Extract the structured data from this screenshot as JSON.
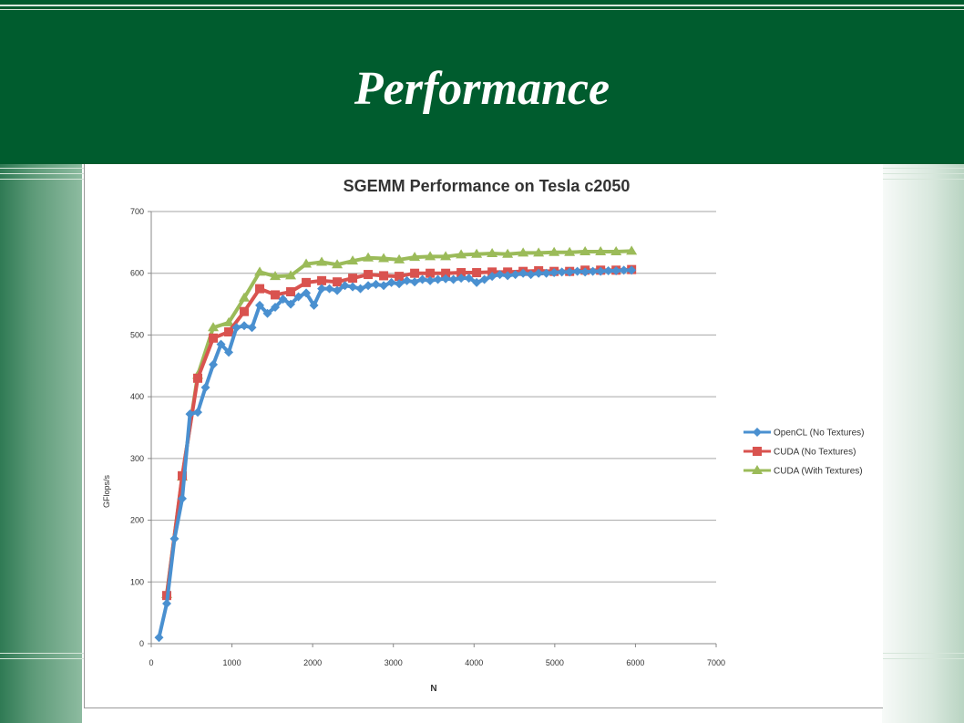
{
  "slide": {
    "title": "Performance"
  },
  "colors": {
    "header_bg": "#005c2e",
    "opencl": "#4a90d0",
    "cuda_no_tex": "#d9534f",
    "cuda_tex": "#9bbb59"
  },
  "chart_data": {
    "type": "line",
    "title": "SGEMM Performance on Tesla c2050",
    "xlabel": "N",
    "ylabel": "GFlops/s",
    "xlim": [
      0,
      7000
    ],
    "ylim": [
      0,
      700
    ],
    "xticks": [
      0,
      1000,
      2000,
      3000,
      4000,
      5000,
      6000,
      7000
    ],
    "yticks": [
      0,
      100,
      200,
      300,
      400,
      500,
      600,
      700
    ],
    "grid": "horizontal",
    "legend": "right",
    "x": [
      96,
      192,
      288,
      384,
      480,
      576,
      672,
      768,
      864,
      960,
      1056,
      1152,
      1248,
      1344,
      1440,
      1536,
      1632,
      1728,
      1824,
      1920,
      2016,
      2112,
      2208,
      2304,
      2400,
      2496,
      2592,
      2688,
      2784,
      2880,
      2976,
      3072,
      3168,
      3264,
      3360,
      3456,
      3552,
      3648,
      3744,
      3840,
      3936,
      4032,
      4128,
      4224,
      4320,
      4416,
      4512,
      4608,
      4704,
      4800,
      4896,
      4992,
      5088,
      5184,
      5280,
      5376,
      5472,
      5568,
      5664,
      5760,
      5856,
      5952
    ],
    "series": [
      {
        "name": "OpenCL (No Textures)",
        "values": [
          10,
          65,
          170,
          235,
          372,
          375,
          415,
          452,
          485,
          472,
          512,
          515,
          512,
          548,
          535,
          545,
          558,
          550,
          562,
          568,
          548,
          575,
          575,
          572,
          580,
          578,
          575,
          580,
          582,
          580,
          585,
          583,
          588,
          586,
          590,
          588,
          590,
          591,
          590,
          592,
          592,
          585,
          590,
          595,
          598,
          596,
          598,
          600,
          598,
          600,
          600,
          601,
          602,
          602,
          603,
          602,
          603,
          603,
          604,
          604,
          605,
          605
        ]
      },
      {
        "name": "CUDA (No Textures)",
        "values": [
          null,
          78,
          null,
          272,
          null,
          430,
          null,
          495,
          null,
          505,
          null,
          538,
          null,
          575,
          null,
          565,
          null,
          570,
          null,
          585,
          null,
          588,
          null,
          586,
          null,
          592,
          null,
          598,
          null,
          596,
          null,
          595,
          null,
          600,
          null,
          600,
          null,
          600,
          null,
          601,
          null,
          601,
          null,
          602,
          null,
          602,
          null,
          603,
          null,
          604,
          null,
          603,
          null,
          603,
          null,
          605,
          null,
          605,
          null,
          605,
          null,
          606
        ]
      },
      {
        "name": "CUDA (With Textures)",
        "values": [
          null,
          80,
          null,
          270,
          null,
          435,
          null,
          512,
          null,
          520,
          null,
          560,
          null,
          602,
          null,
          595,
          null,
          596,
          null,
          615,
          null,
          618,
          null,
          614,
          null,
          620,
          null,
          625,
          null,
          624,
          null,
          622,
          null,
          626,
          null,
          627,
          null,
          627,
          null,
          630,
          null,
          631,
          null,
          632,
          null,
          631,
          null,
          633,
          null,
          633,
          null,
          634,
          null,
          634,
          null,
          635,
          null,
          635,
          null,
          635,
          null,
          636
        ]
      }
    ]
  }
}
